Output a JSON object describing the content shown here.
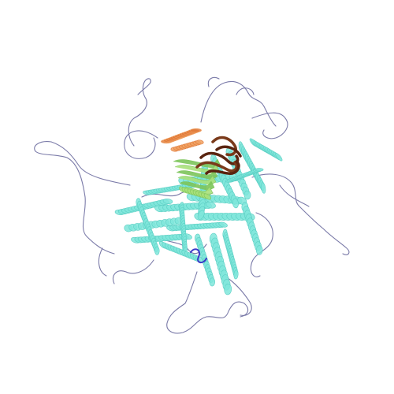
{
  "scene": {
    "background_color": "#ffffff",
    "representation": "protein-structure-cartoon",
    "colors": {
      "coil": "#7a7aa8",
      "coil_dark": "#55557a",
      "helix_main": "#7fe6da",
      "helix_edge": "#5ccfc4",
      "sheet_green": "#a8e07a",
      "sheet_green_dark": "#7cc45a",
      "helix_orange": "#e07a3a",
      "helix_orange_light": "#f0a060",
      "strand_brown": "#7a3a1a",
      "strand_brown_dark": "#5a2410",
      "blue_segment": "#3a3ac8"
    }
  }
}
